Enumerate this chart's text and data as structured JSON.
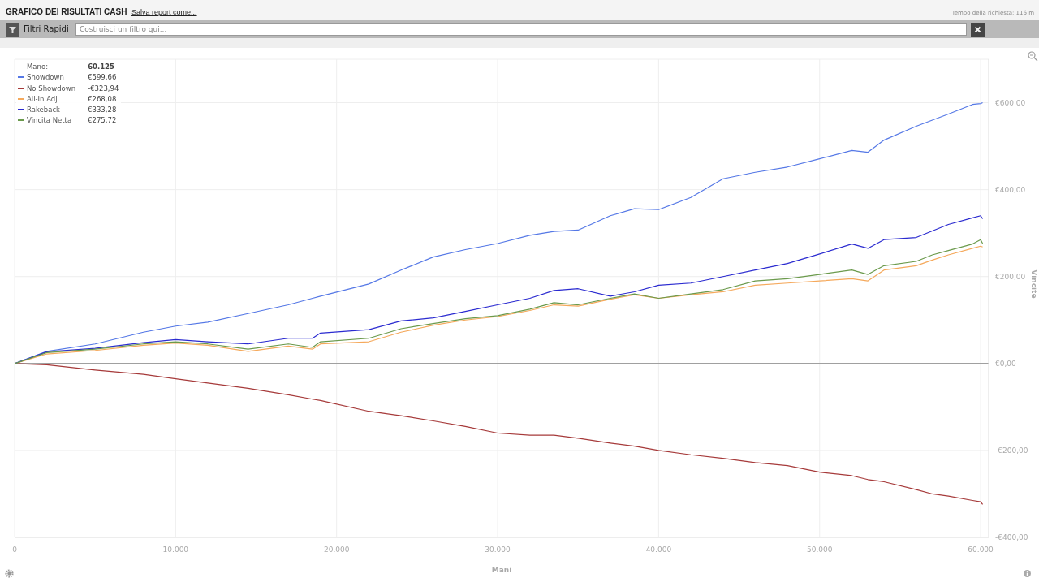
{
  "chart_data": {
    "type": "line",
    "title": "GRAFICO DEI RISULTATI CASH",
    "xlabel": "Mani",
    "ylabel": "Vincite",
    "x": [
      0,
      2000,
      5000,
      8000,
      10000,
      12000,
      14500,
      17000,
      18500,
      19000,
      22000,
      24000,
      26000,
      28000,
      30000,
      32000,
      33500,
      35000,
      37000,
      38500,
      40000,
      42000,
      44000,
      46000,
      48000,
      50000,
      52000,
      53000,
      54000,
      56000,
      57000,
      58000,
      59500,
      60000,
      60125
    ],
    "series": [
      {
        "name": "Showdown",
        "color": "#5578e6",
        "values": [
          0,
          28,
          45,
          72,
          86,
          95,
          115,
          135,
          150,
          155,
          183,
          215,
          245,
          262,
          276,
          295,
          304,
          307,
          340,
          356,
          354,
          382,
          425,
          440,
          452,
          471,
          490,
          486,
          514,
          546,
          560,
          574,
          596,
          598,
          600
        ]
      },
      {
        "name": "No Showdown",
        "color": "#a63a3a",
        "values": [
          0,
          -3,
          -15,
          -25,
          -35,
          -45,
          -57,
          -72,
          -82,
          -85,
          -110,
          -120,
          -132,
          -145,
          -160,
          -165,
          -165,
          -172,
          -183,
          -190,
          -200,
          -210,
          -218,
          -228,
          -235,
          -250,
          -258,
          -267,
          -272,
          -290,
          -300,
          -305,
          -315,
          -318,
          -324
        ]
      },
      {
        "name": "All-In Adj",
        "color": "#f5a95c",
        "values": [
          0,
          22,
          30,
          42,
          47,
          42,
          28,
          40,
          33,
          45,
          50,
          72,
          88,
          100,
          108,
          122,
          135,
          132,
          148,
          158,
          150,
          158,
          165,
          180,
          185,
          190,
          195,
          190,
          215,
          225,
          238,
          250,
          265,
          270,
          268
        ]
      },
      {
        "name": "Rakeback",
        "color": "#2b2bd0",
        "values": [
          0,
          27,
          35,
          48,
          55,
          50,
          45,
          58,
          58,
          70,
          78,
          98,
          105,
          120,
          135,
          150,
          168,
          172,
          155,
          165,
          180,
          185,
          200,
          215,
          230,
          252,
          275,
          265,
          285,
          290,
          305,
          320,
          335,
          340,
          333
        ]
      },
      {
        "name": "Vincita Netta",
        "color": "#6b9a4c",
        "values": [
          0,
          25,
          33,
          45,
          50,
          45,
          33,
          45,
          37,
          50,
          58,
          80,
          92,
          103,
          110,
          125,
          140,
          135,
          150,
          160,
          150,
          160,
          170,
          190,
          195,
          205,
          215,
          205,
          225,
          235,
          250,
          260,
          275,
          285,
          276
        ]
      }
    ],
    "xlim": [
      0,
      60500
    ],
    "xticks": [
      0,
      {
        "value": 10000,
        "label": "10.000"
      },
      {
        "value": 20000,
        "label": "20.000"
      },
      {
        "value": 30000,
        "label": "30.000"
      },
      {
        "value": 40000,
        "label": "40.000"
      },
      {
        "value": 50000,
        "label": "50.000"
      },
      {
        "value": 60000,
        "label": "60.000"
      }
    ],
    "ylim": [
      -400,
      700
    ],
    "yticks": [
      {
        "value": -400,
        "label": "-€400,00"
      },
      {
        "value": -200,
        "label": "-€200,00"
      },
      {
        "value": 0,
        "label": "€0,00"
      },
      {
        "value": 200,
        "label": "€200,00"
      },
      {
        "value": 400,
        "label": "€400,00"
      },
      {
        "value": 600,
        "label": "€600,00"
      }
    ],
    "ref_lines": [
      {
        "axis": "y",
        "value": 0,
        "color": "#a0a0a0"
      }
    ],
    "grid": true,
    "legend": "top left",
    "marker": "none",
    "line_style": "solid",
    "annotations": [
      "Salva report come...",
      "Filtri Rapidi",
      "Costruisci un filtro qui...",
      "Tempo della richiesta: 116 m",
      "Mano:",
      "60.125",
      "€599,66",
      "-€323,94",
      "€268,08",
      "€333,28",
      "€275,72"
    ]
  }
}
